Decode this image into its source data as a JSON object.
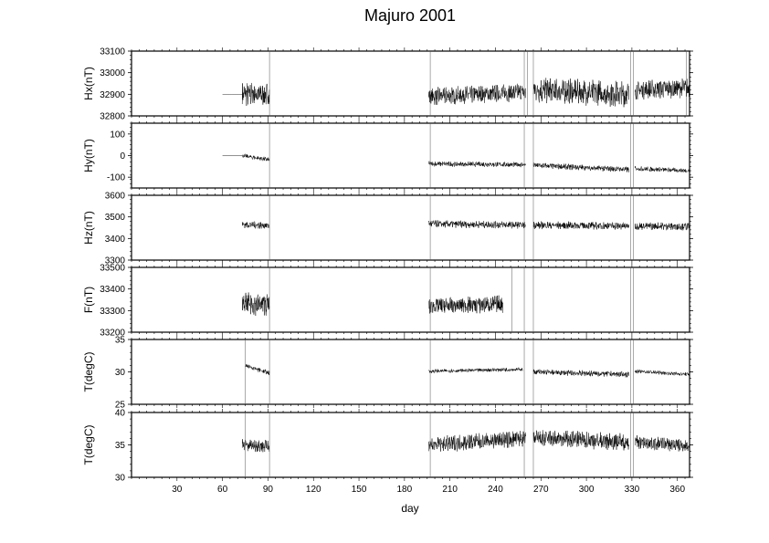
{
  "chart_data": {
    "type": "line",
    "title": "Majuro 2001",
    "xlabel": "day",
    "xlim": [
      0,
      368
    ],
    "x_ticks": [
      30,
      60,
      90,
      120,
      150,
      180,
      210,
      240,
      270,
      300,
      330,
      360
    ],
    "x_tick_labels": [
      "30",
      "60",
      "90",
      "120",
      "150",
      "180",
      "210",
      "240",
      "270",
      "300",
      "330",
      "360"
    ],
    "x_minor_step": 5,
    "grid": false,
    "line_color": "#000000",
    "panels": [
      {
        "ylabel": "Hx(nT)",
        "ylim": [
          32800,
          33100
        ],
        "y_ticks": [
          32800,
          32900,
          33000,
          33100
        ],
        "y_tick_labels": [
          "32800",
          "32900",
          "33000",
          "33100"
        ],
        "segments": [
          {
            "x": [
              60,
              73
            ],
            "y": [
              32900,
              32900
            ],
            "noise": 0
          },
          {
            "x": [
              73,
              91
            ],
            "y": [
              32900,
              32900
            ],
            "noise": 75
          },
          {
            "x": [
              196,
              260
            ],
            "y": [
              32890,
              32910
            ],
            "noise": 55
          },
          {
            "x": [
              265,
              328
            ],
            "y": [
              32920,
              32900
            ],
            "noise": 80
          },
          {
            "x": [
              332,
              368
            ],
            "y": [
              32920,
              32930
            ],
            "noise": 60
          }
        ],
        "spikes": [
          91,
          197,
          259,
          261,
          265,
          329,
          331,
          366
        ]
      },
      {
        "ylabel": "Hy(nT)",
        "ylim": [
          -150,
          150
        ],
        "y_ticks": [
          -100,
          0,
          100
        ],
        "y_tick_labels": [
          "-100",
          "0",
          "100"
        ],
        "segments": [
          {
            "x": [
              60,
              73
            ],
            "y": [
              0,
              0
            ],
            "noise": 0
          },
          {
            "x": [
              73,
              91
            ],
            "y": [
              0,
              -20
            ],
            "noise": 14
          },
          {
            "x": [
              196,
              260
            ],
            "y": [
              -38,
              -42
            ],
            "noise": 16
          },
          {
            "x": [
              265,
              328
            ],
            "y": [
              -45,
              -65
            ],
            "noise": 18
          },
          {
            "x": [
              332,
              368
            ],
            "y": [
              -60,
              -70
            ],
            "noise": 15
          }
        ],
        "spikes": [
          91,
          197,
          259,
          265,
          329,
          331
        ]
      },
      {
        "ylabel": "Hz(nT)",
        "ylim": [
          3300,
          3600
        ],
        "y_ticks": [
          3300,
          3400,
          3500,
          3600
        ],
        "y_tick_labels": [
          "3300",
          "3400",
          "3500",
          "3600"
        ],
        "segments": [
          {
            "x": [
              73,
              91
            ],
            "y": [
              3465,
              3460
            ],
            "noise": 22
          },
          {
            "x": [
              196,
              260
            ],
            "y": [
              3468,
              3462
            ],
            "noise": 22
          },
          {
            "x": [
              265,
              328
            ],
            "y": [
              3462,
              3458
            ],
            "noise": 24
          },
          {
            "x": [
              332,
              368
            ],
            "y": [
              3458,
              3455
            ],
            "noise": 24
          }
        ],
        "spikes": [
          91,
          197,
          259,
          265,
          329,
          331
        ]
      },
      {
        "ylabel": "F(nT)",
        "ylim": [
          33200,
          33500
        ],
        "y_ticks": [
          33200,
          33300,
          33400,
          33500
        ],
        "y_tick_labels": [
          "33200",
          "33300",
          "33400",
          "33500"
        ],
        "segments": [
          {
            "x": [
              73,
              91
            ],
            "y": [
              33330,
              33330
            ],
            "noise": 70
          },
          {
            "x": [
              196,
              245
            ],
            "y": [
              33320,
              33330
            ],
            "noise": 55
          }
        ],
        "spikes": [
          91,
          197,
          251,
          259,
          265,
          329,
          331
        ]
      },
      {
        "ylabel": "T(degC)",
        "ylim": [
          25,
          35
        ],
        "y_ticks": [
          25,
          30,
          35
        ],
        "y_tick_labels": [
          "25",
          "30",
          "35"
        ],
        "segments": [
          {
            "x": [
              75,
              91
            ],
            "y": [
              31,
              29.8
            ],
            "noise": 0.5
          },
          {
            "x": [
              196,
              258
            ],
            "y": [
              30.1,
              30.4
            ],
            "noise": 0.4
          },
          {
            "x": [
              265,
              328
            ],
            "y": [
              30,
              29.6
            ],
            "noise": 0.6
          },
          {
            "x": [
              332,
              368
            ],
            "y": [
              30.1,
              29.6
            ],
            "noise": 0.4
          }
        ],
        "spikes": [
          75,
          91,
          197,
          259,
          265,
          329,
          331
        ]
      },
      {
        "ylabel": "T(degC)",
        "ylim": [
          30,
          40
        ],
        "y_ticks": [
          30,
          35,
          40
        ],
        "y_tick_labels": [
          "30",
          "35",
          "40"
        ],
        "segments": [
          {
            "x": [
              73,
              91
            ],
            "y": [
              35,
              34.8
            ],
            "noise": 1.4
          },
          {
            "x": [
              196,
              260
            ],
            "y": [
              35,
              36
            ],
            "noise": 1.7
          },
          {
            "x": [
              265,
              328
            ],
            "y": [
              36,
              35.5
            ],
            "noise": 1.8
          },
          {
            "x": [
              332,
              368
            ],
            "y": [
              35.5,
              34.8
            ],
            "noise": 1.4
          }
        ],
        "spikes": [
          75,
          91,
          197,
          259,
          265,
          329,
          331
        ]
      }
    ]
  }
}
